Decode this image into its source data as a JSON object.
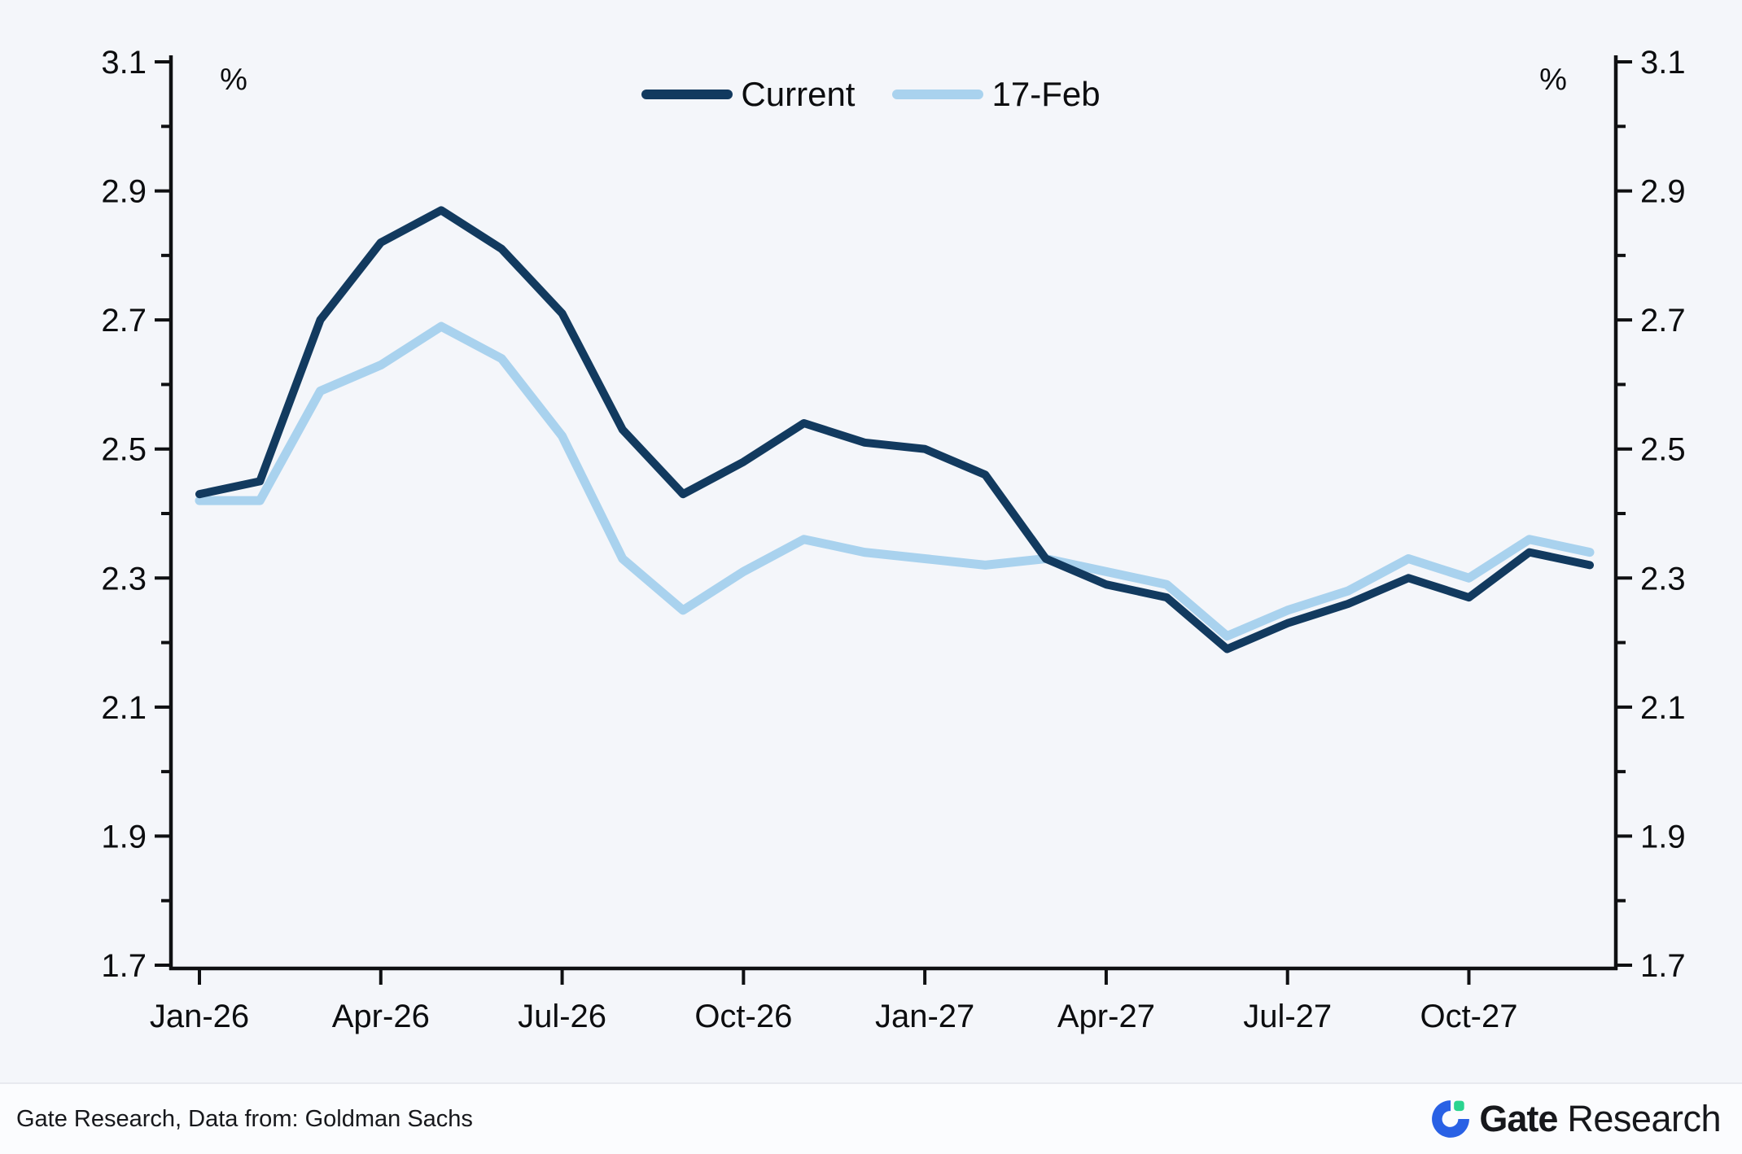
{
  "chart_data": {
    "type": "line",
    "title": "",
    "unit_label": "%",
    "grid": false,
    "legend_position": "top-center",
    "x_categories": [
      "Jan-26",
      "Feb-26",
      "Mar-26",
      "Apr-26",
      "May-26",
      "Jun-26",
      "Jul-26",
      "Aug-26",
      "Sep-26",
      "Oct-26",
      "Nov-26",
      "Dec-26",
      "Jan-27",
      "Feb-27",
      "Mar-27",
      "Apr-27",
      "May-27",
      "Jun-27",
      "Jul-27",
      "Aug-27",
      "Sep-27",
      "Oct-27",
      "Nov-27",
      "Dec-27"
    ],
    "x_tick_labels": [
      "Jan-26",
      "Apr-26",
      "Jul-26",
      "Oct-26",
      "Jan-27",
      "Apr-27",
      "Jul-27",
      "Oct-27"
    ],
    "x_major_tick_indices": [
      0,
      3,
      6,
      9,
      12,
      15,
      18,
      21
    ],
    "y_axis": {
      "min": 1.7,
      "max": 3.1,
      "major_step": 0.2,
      "minor_step": 0.1,
      "unit": "%"
    },
    "series": [
      {
        "name": "Current",
        "color": "#123a5f",
        "stroke_width": 10,
        "values": [
          2.43,
          2.45,
          2.7,
          2.82,
          2.87,
          2.81,
          2.71,
          2.53,
          2.43,
          2.48,
          2.54,
          2.51,
          2.5,
          2.46,
          2.33,
          2.29,
          2.27,
          2.19,
          2.23,
          2.26,
          2.3,
          2.27,
          2.34,
          2.32
        ]
      },
      {
        "name": "17-Feb",
        "color": "#a9d2ee",
        "stroke_width": 11,
        "values": [
          2.42,
          2.42,
          2.59,
          2.63,
          2.69,
          2.64,
          2.52,
          2.33,
          2.25,
          2.31,
          2.36,
          2.34,
          2.33,
          2.32,
          2.33,
          2.31,
          2.29,
          2.21,
          2.25,
          2.28,
          2.33,
          2.3,
          2.36,
          2.34
        ]
      }
    ]
  },
  "footer": {
    "source_text": "Gate Research, Data from: Goldman Sachs",
    "brand": {
      "name_bold": "Gate",
      "name_regular": "Research"
    }
  },
  "colors": {
    "background": "#f4f6fa",
    "axis": "#0f1012",
    "tick_label": "#0c0d0f",
    "series_current": "#123a5f",
    "series_17feb": "#a9d2ee",
    "footer_background": "#fbfcfe",
    "footer_divider": "#e7e9ef",
    "logo_blue": "#2961e5",
    "logo_green": "#2ad490"
  }
}
